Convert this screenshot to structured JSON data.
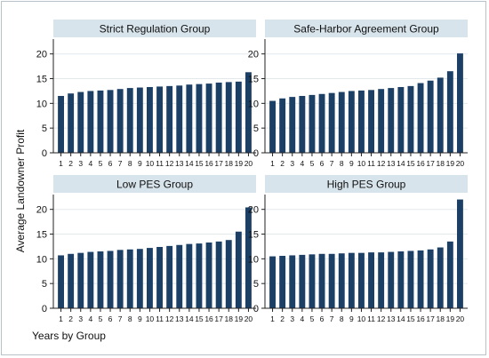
{
  "chart_data": {
    "type": "bar",
    "ylabel": "Average Landowner Profit",
    "xlabel": "Years by Group",
    "ylim": [
      0,
      23
    ],
    "yticks": [
      0,
      5,
      10,
      15,
      20
    ],
    "categories": [
      "1",
      "2",
      "3",
      "4",
      "5",
      "6",
      "7",
      "8",
      "9",
      "10",
      "11",
      "12",
      "13",
      "14",
      "15",
      "16",
      "17",
      "18",
      "19",
      "20"
    ],
    "grid": "horizontal",
    "colors": {
      "bar": "#1c3f66",
      "strip": "#d8e4eb",
      "grid": "#e3e8eb",
      "axis": "#222222"
    },
    "panels": [
      {
        "title": "Strict Regulation Group",
        "values": [
          11.5,
          12.0,
          12.3,
          12.5,
          12.6,
          12.7,
          12.9,
          13.1,
          13.2,
          13.3,
          13.4,
          13.5,
          13.6,
          13.8,
          13.9,
          14.0,
          14.2,
          14.3,
          14.4,
          16.3
        ]
      },
      {
        "title": "Safe-Harbor Agreement Group",
        "values": [
          10.5,
          11.0,
          11.3,
          11.5,
          11.7,
          11.9,
          12.1,
          12.3,
          12.5,
          12.6,
          12.7,
          12.9,
          13.1,
          13.3,
          13.5,
          14.1,
          14.6,
          15.2,
          16.5,
          20.1
        ]
      },
      {
        "title": "Low PES Group",
        "values": [
          10.7,
          11.0,
          11.2,
          11.4,
          11.5,
          11.6,
          11.8,
          11.9,
          12.0,
          12.2,
          12.4,
          12.6,
          12.8,
          13.0,
          13.1,
          13.3,
          13.5,
          13.8,
          15.5,
          20.4
        ]
      },
      {
        "title": "High PES Group",
        "values": [
          10.5,
          10.6,
          10.7,
          10.8,
          10.9,
          11.0,
          11.0,
          11.1,
          11.2,
          11.2,
          11.3,
          11.3,
          11.4,
          11.5,
          11.6,
          11.7,
          11.9,
          12.3,
          13.5,
          22.0
        ]
      }
    ]
  }
}
